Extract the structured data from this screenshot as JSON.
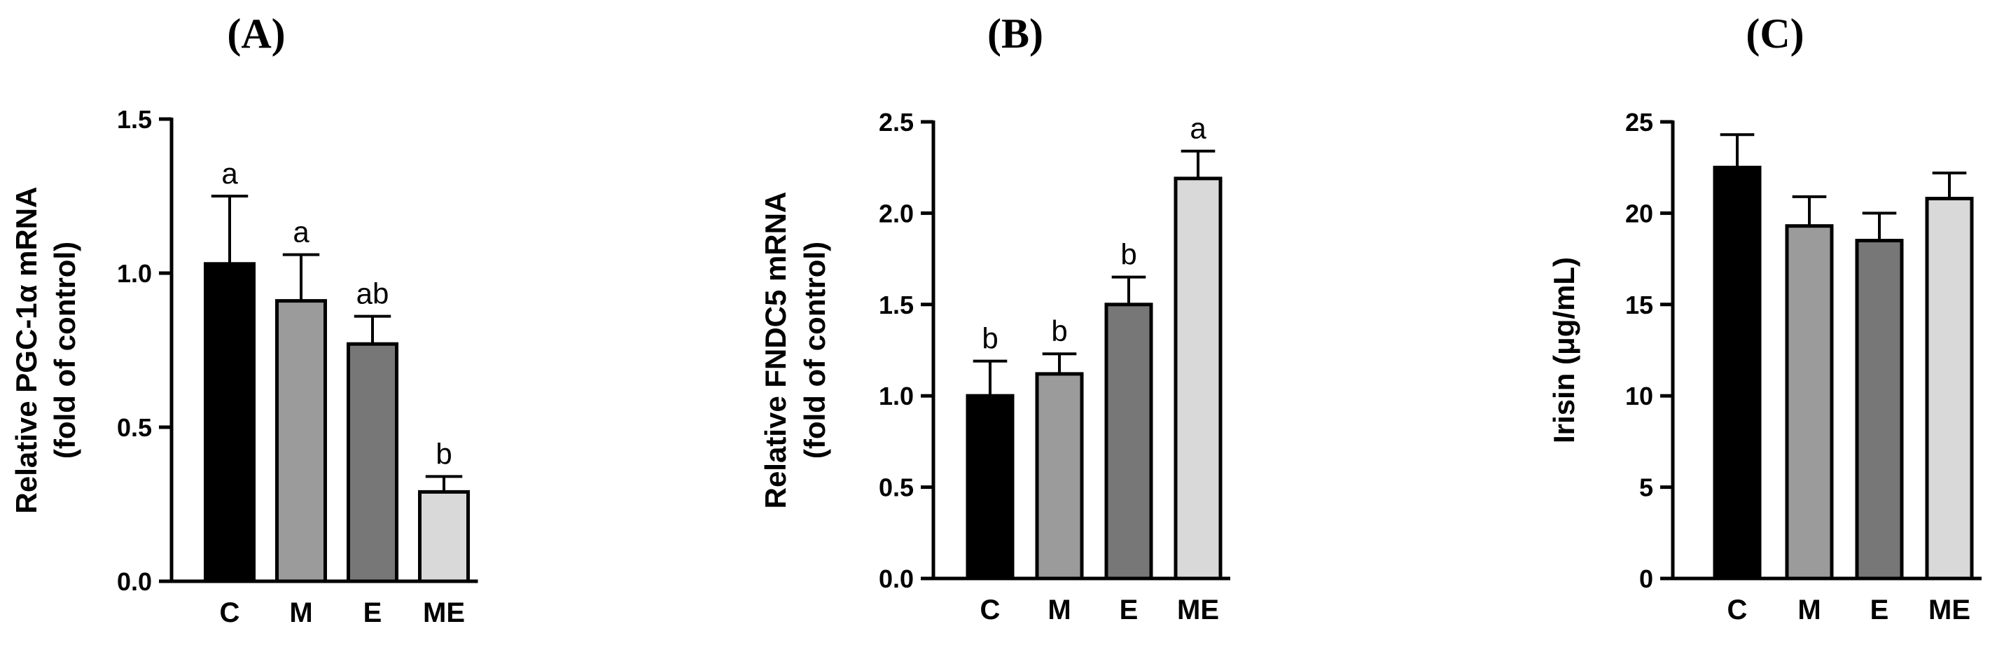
{
  "chart_data": [
    {
      "type": "bar",
      "panel_label": "(A)",
      "ylabel_lines": [
        "Relative PGC-1α mRNA",
        "(fold of control)"
      ],
      "categories": [
        "C",
        "M",
        "E",
        "ME"
      ],
      "values": [
        1.03,
        0.91,
        0.77,
        0.29
      ],
      "errors": [
        0.22,
        0.15,
        0.09,
        0.05
      ],
      "significance": [
        "a",
        "a",
        "ab",
        "b"
      ],
      "ylim": [
        0,
        1.5
      ],
      "yticks": [
        0,
        0.5,
        1.0,
        1.5
      ],
      "ytick_labels": [
        "0.0",
        "0.5",
        "1.0",
        "1.5"
      ]
    },
    {
      "type": "bar",
      "panel_label": "(B)",
      "ylabel_lines": [
        "Relative FNDC5 mRNA",
        "(fold of control)"
      ],
      "categories": [
        "C",
        "M",
        "E",
        "ME"
      ],
      "values": [
        1.0,
        1.12,
        1.5,
        2.19
      ],
      "errors": [
        0.19,
        0.11,
        0.15,
        0.15
      ],
      "significance": [
        "b",
        "b",
        "b",
        "a"
      ],
      "ylim": [
        0,
        2.5
      ],
      "yticks": [
        0,
        0.5,
        1.0,
        1.5,
        2.0,
        2.5
      ],
      "ytick_labels": [
        "0.0",
        "0.5",
        "1.0",
        "1.5",
        "2.0",
        "2.5"
      ]
    },
    {
      "type": "bar",
      "panel_label": "(C)",
      "ylabel_lines": [
        "Irisin (μg/mL)"
      ],
      "categories": [
        "C",
        "M",
        "E",
        "ME"
      ],
      "values": [
        22.5,
        19.3,
        18.5,
        20.8
      ],
      "errors": [
        1.8,
        1.6,
        1.5,
        1.4
      ],
      "significance": [
        "",
        "",
        "",
        ""
      ],
      "ylim": [
        0,
        25
      ],
      "yticks": [
        0,
        5,
        10,
        15,
        20,
        25
      ],
      "ytick_labels": [
        "0",
        "5",
        "10",
        "15",
        "20",
        "25"
      ]
    }
  ],
  "colors": {
    "bar_fills": [
      "#000000",
      "#9b9b9b",
      "#777777",
      "#d9d9d9"
    ],
    "stroke": "#000000"
  }
}
